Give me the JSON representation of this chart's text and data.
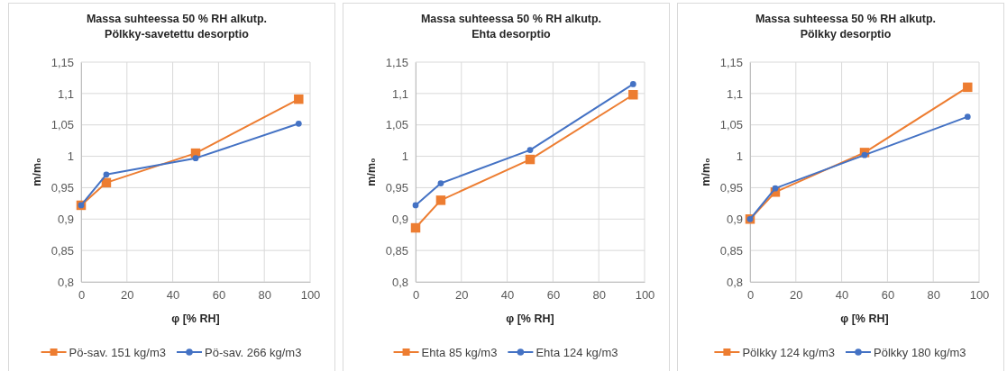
{
  "chart_data": [
    {
      "type": "line",
      "title": "Massa suhteessa 50 % RH alkutp.",
      "subtitle": "Pölkky-savetettu  desorptio",
      "xlabel": "φ [% RH]",
      "ylabel": "m/m₀",
      "xlim": [
        0,
        100
      ],
      "xticks": [
        0,
        20,
        40,
        60,
        80,
        100
      ],
      "ylim": [
        0.8,
        1.15
      ],
      "yticks": [
        {
          "value": 0.8,
          "label": "0,8"
        },
        {
          "value": 0.85,
          "label": "0,85"
        },
        {
          "value": 0.9,
          "label": "0,9"
        },
        {
          "value": 0.95,
          "label": "0,95"
        },
        {
          "value": 1,
          "label": "1"
        },
        {
          "value": 1.05,
          "label": "1,05"
        },
        {
          "value": 1.1,
          "label": "1,1"
        },
        {
          "value": 1.15,
          "label": "1,15"
        }
      ],
      "grid": true,
      "legend": "bottom",
      "x": [
        0,
        11,
        50,
        95
      ],
      "series": [
        {
          "name": "Pö-sav. 151 kg/m3",
          "color": "#ed7d31",
          "marker": "square",
          "values": [
            0.922,
            0.958,
            1.005,
            1.091
          ]
        },
        {
          "name": "Pö-sav. 266 kg/m3",
          "color": "#4472c4",
          "marker": "circle",
          "values": [
            0.922,
            0.971,
            0.997,
            1.052
          ]
        }
      ]
    },
    {
      "type": "line",
      "title": "Massa suhteessa 50 % RH alkutp.",
      "subtitle": "Ehta desorptio",
      "xlabel": "φ [% RH]",
      "ylabel": "m/m₀",
      "xlim": [
        0,
        100
      ],
      "xticks": [
        0,
        20,
        40,
        60,
        80,
        100
      ],
      "ylim": [
        0.8,
        1.15
      ],
      "yticks": [
        {
          "value": 0.8,
          "label": "0,8"
        },
        {
          "value": 0.85,
          "label": "0,85"
        },
        {
          "value": 0.9,
          "label": "0,9"
        },
        {
          "value": 0.95,
          "label": "0,95"
        },
        {
          "value": 1,
          "label": "1"
        },
        {
          "value": 1.05,
          "label": "1,05"
        },
        {
          "value": 1.1,
          "label": "1,1"
        },
        {
          "value": 1.15,
          "label": "1,15"
        }
      ],
      "grid": true,
      "legend": "bottom",
      "x": [
        0,
        11,
        50,
        95
      ],
      "series": [
        {
          "name": "Ehta 85 kg/m3",
          "color": "#ed7d31",
          "marker": "square",
          "values": [
            0.886,
            0.93,
            0.995,
            1.098
          ]
        },
        {
          "name": "Ehta 124 kg/m3",
          "color": "#4472c4",
          "marker": "circle",
          "values": [
            0.922,
            0.957,
            1.01,
            1.115
          ]
        }
      ]
    },
    {
      "type": "line",
      "title": "Massa suhteessa 50 % RH alkutp.",
      "subtitle": "Pölkky desorptio",
      "xlabel": "φ [% RH]",
      "ylabel": "m/m₀",
      "xlim": [
        0,
        100
      ],
      "xticks": [
        0,
        20,
        40,
        60,
        80,
        100
      ],
      "ylim": [
        0.8,
        1.15
      ],
      "yticks": [
        {
          "value": 0.8,
          "label": "0,8"
        },
        {
          "value": 0.85,
          "label": "0,85"
        },
        {
          "value": 0.9,
          "label": "0,9"
        },
        {
          "value": 0.95,
          "label": "0,95"
        },
        {
          "value": 1,
          "label": "1"
        },
        {
          "value": 1.05,
          "label": "1,05"
        },
        {
          "value": 1.1,
          "label": "1,1"
        },
        {
          "value": 1.15,
          "label": "1,15"
        }
      ],
      "grid": true,
      "legend": "bottom",
      "x": [
        0,
        11,
        50,
        95
      ],
      "series": [
        {
          "name": "Pölkky 124 kg/m3",
          "color": "#ed7d31",
          "marker": "square",
          "values": [
            0.9,
            0.943,
            1.006,
            1.11
          ]
        },
        {
          "name": "Pölkky 180 kg/m3",
          "color": "#4472c4",
          "marker": "circle",
          "values": [
            0.9,
            0.949,
            1.002,
            1.063
          ]
        }
      ]
    }
  ]
}
